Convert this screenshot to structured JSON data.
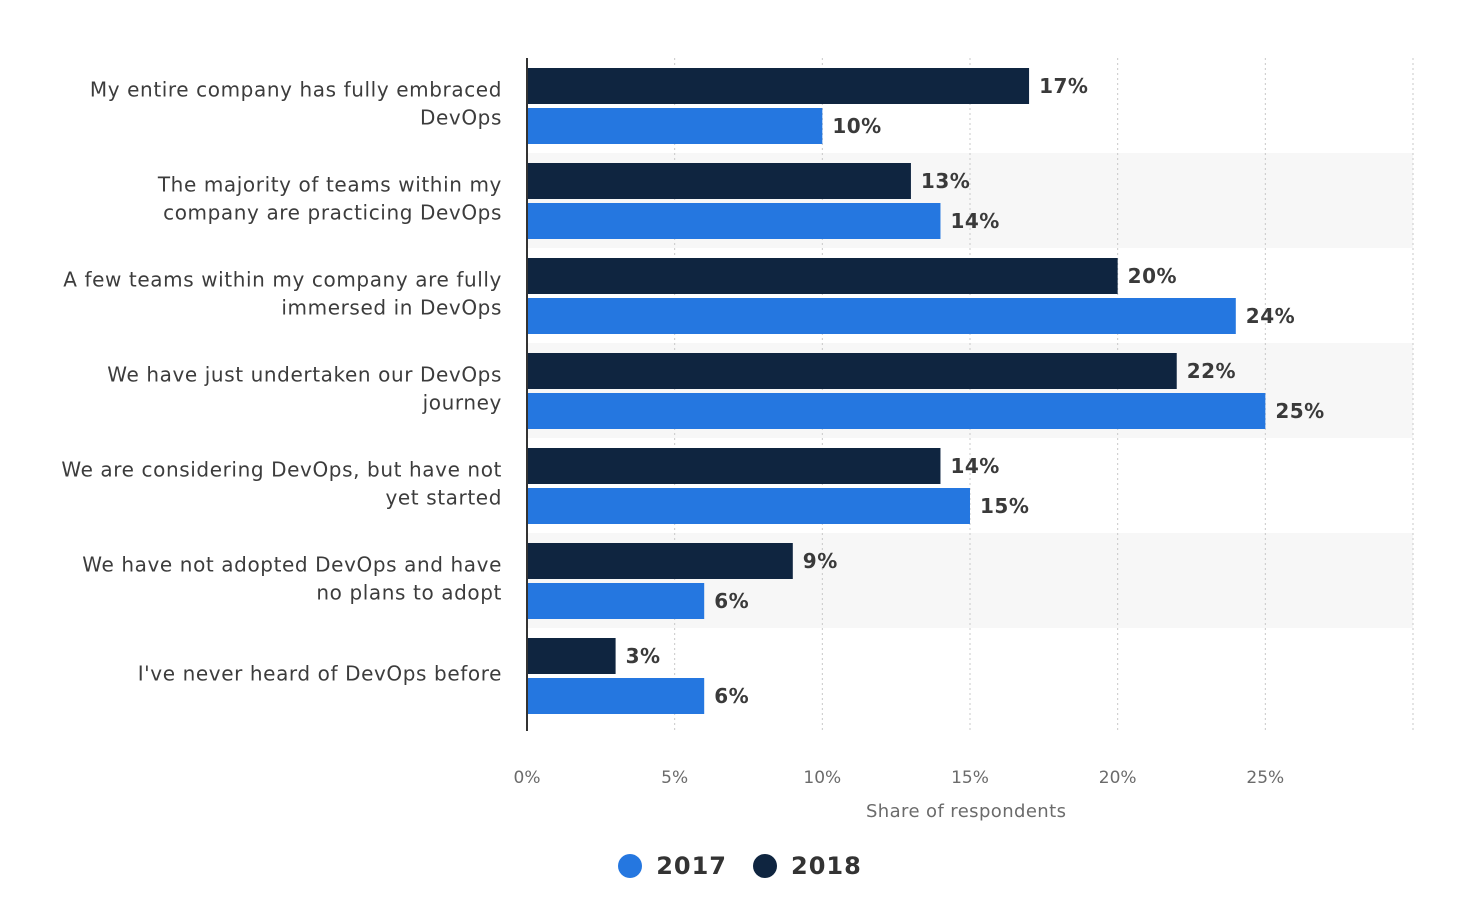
{
  "chart_data": {
    "type": "bar",
    "orientation": "horizontal",
    "title": "",
    "xlabel": "Share of respondents",
    "ylabel": "",
    "xlim": [
      0,
      30
    ],
    "x_ticks": [
      0,
      5,
      10,
      15,
      20,
      25
    ],
    "x_tick_labels": [
      "0%",
      "5%",
      "10%",
      "15%",
      "20%",
      "25%"
    ],
    "grid": true,
    "legend_position": "bottom-center",
    "categories": [
      [
        "My entire company has fully embraced",
        "DevOps"
      ],
      [
        "The majority of teams within my",
        "company are practicing DevOps"
      ],
      [
        "A few teams within my company are fully",
        "immersed in DevOps"
      ],
      [
        "We have just undertaken our DevOps",
        "journey"
      ],
      [
        "We are considering DevOps, but have not",
        "yet started"
      ],
      [
        "We have not adopted DevOps and have",
        "no plans to adopt"
      ],
      [
        "I've never heard of DevOps before"
      ]
    ],
    "series": [
      {
        "name": "2018",
        "color": "#0f2540",
        "values": [
          17,
          13,
          20,
          22,
          14,
          9,
          3
        ],
        "labels": [
          "17%",
          "13%",
          "20%",
          "22%",
          "14%",
          "9%",
          "3%"
        ]
      },
      {
        "name": "2017",
        "color": "#2577e0",
        "values": [
          10,
          14,
          24,
          25,
          15,
          6,
          6
        ],
        "labels": [
          "10%",
          "14%",
          "24%",
          "25%",
          "15%",
          "6%",
          "6%"
        ]
      }
    ]
  },
  "legend": {
    "items": [
      {
        "label": "2017",
        "color": "#2577e0"
      },
      {
        "label": "2018",
        "color": "#0f2540"
      }
    ]
  }
}
